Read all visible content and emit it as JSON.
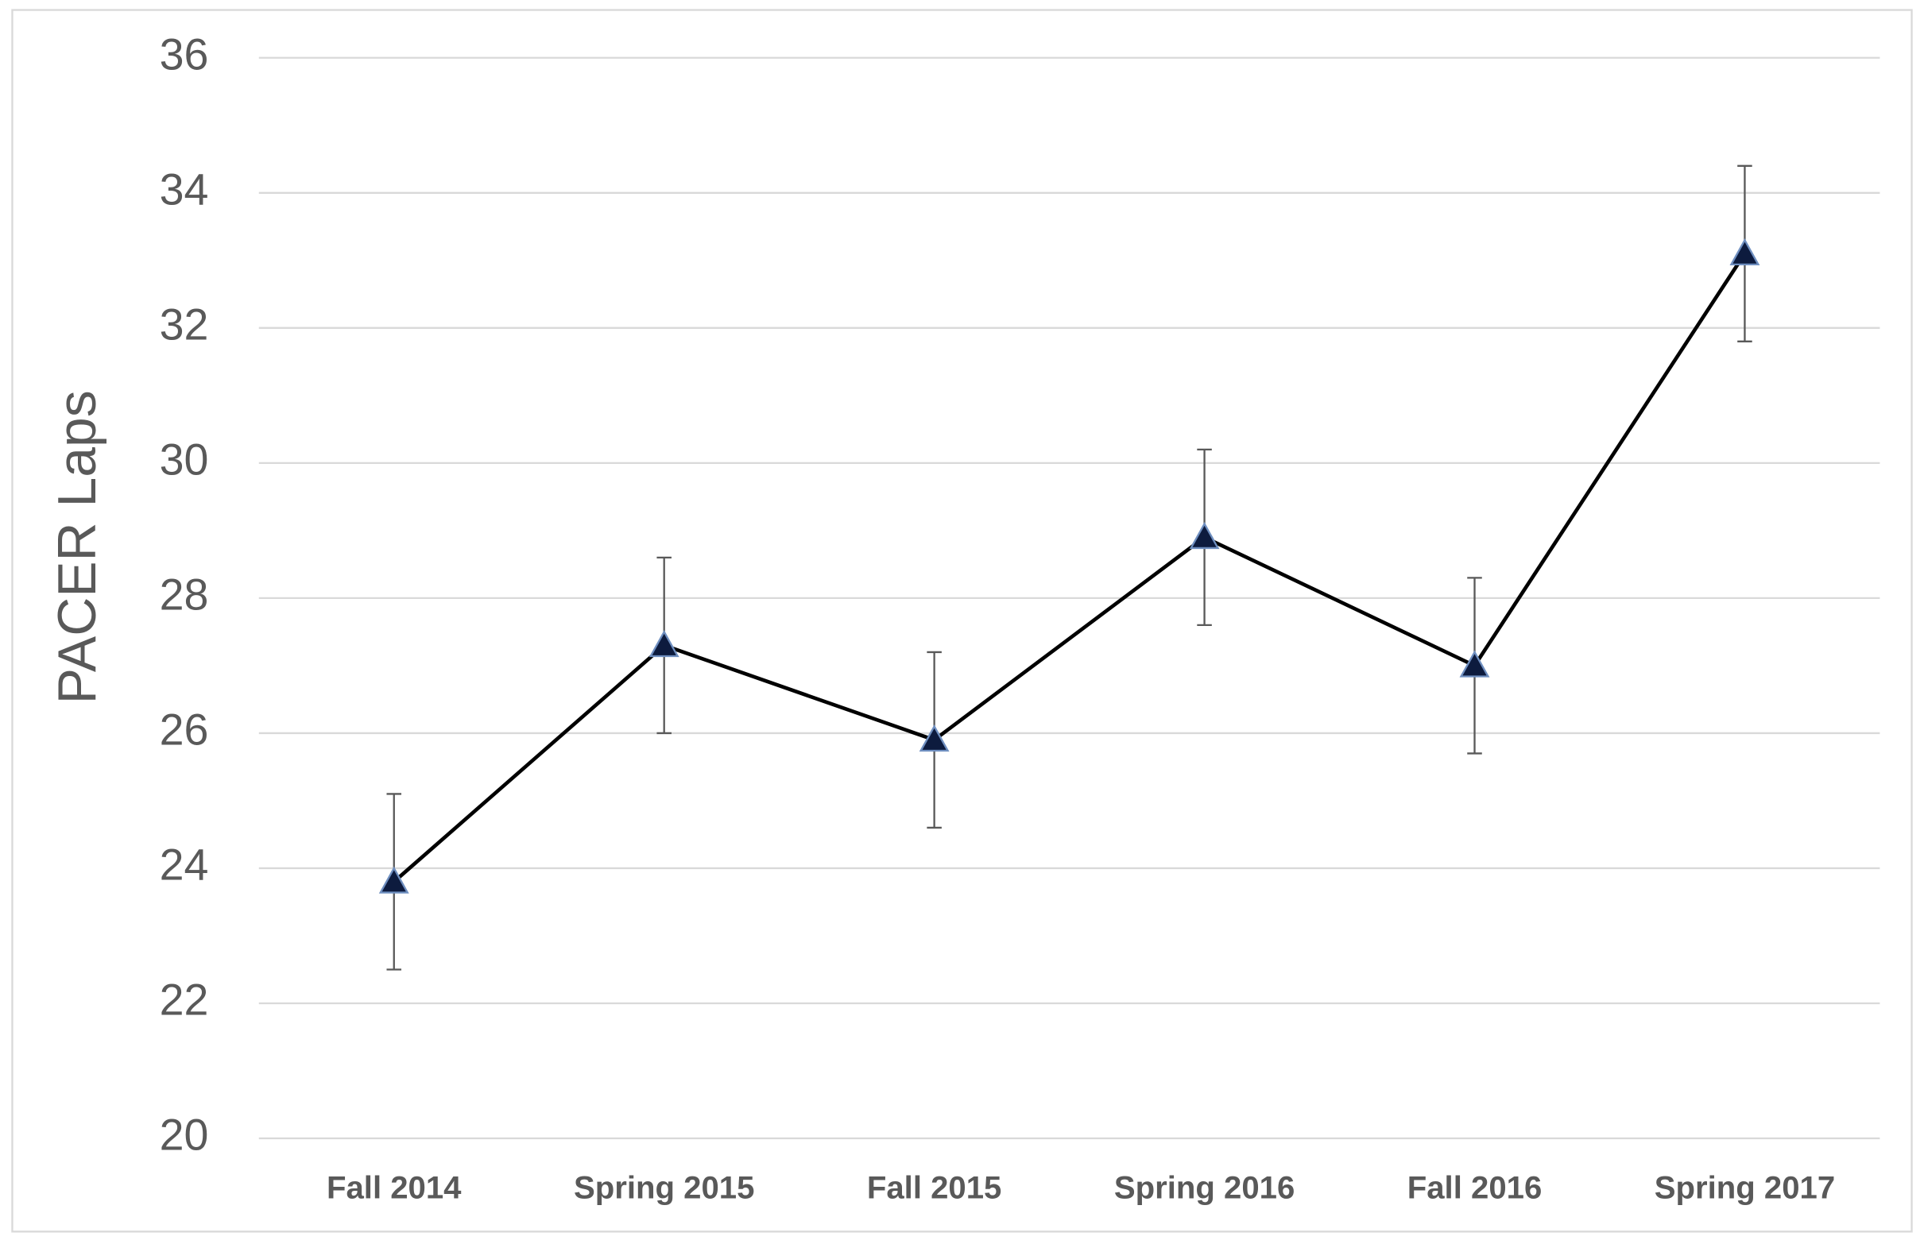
{
  "chart_data": {
    "type": "line",
    "y_label": "PACER Laps",
    "categories": [
      "Fall 2014",
      "Spring 2015",
      "Fall 2015",
      "Spring 2016",
      "Fall 2016",
      "Spring 2017"
    ],
    "values": [
      23.8,
      27.3,
      25.9,
      28.9,
      27.0,
      33.1
    ],
    "errors": [
      1.3,
      1.3,
      1.3,
      1.3,
      1.3,
      1.3
    ],
    "color": "#000000",
    "marker_color": "#0d1b3e",
    "error_color": "#595959",
    "ylim": [
      20,
      36
    ],
    "yticks": [
      20,
      22,
      24,
      26,
      28,
      30,
      32,
      34,
      36
    ],
    "grid": true
  }
}
